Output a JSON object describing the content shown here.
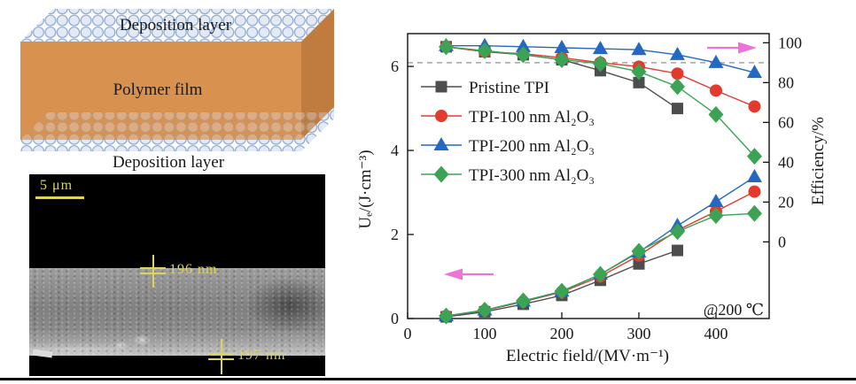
{
  "figure": {
    "schematic": {
      "top_label": "Deposition layer",
      "film_label": "Polymer film",
      "bottom_label": "Deposition layer",
      "film_color": "#d8914f",
      "film_side_color": "#c07c3e",
      "sphere_fill": "#e3eaf6",
      "sphere_edge": "#8aa5cd"
    },
    "sem": {
      "scale_bar_label": "5 μm",
      "measurement_top": "196 nm",
      "measurement_bottom": "197 nm",
      "annotation_color": "#dcd45f"
    },
    "chart_data": {
      "type": "line",
      "xlabel": "Electric field/(MV·m⁻¹)",
      "ylabel_left": "Uₑ/(J·cm⁻³)",
      "ylabel_right": "Efficiency/%",
      "annotation": "@200 ℃",
      "x_ticks": [
        0,
        100,
        200,
        300,
        400
      ],
      "left_ticks": [
        0,
        2,
        4,
        6
      ],
      "right_ticks": [
        0,
        20,
        40,
        60,
        80,
        100
      ],
      "xlim": [
        0,
        469
      ],
      "ylim_left": [
        0,
        6.78
      ],
      "ylim_right": [
        -38.5,
        104.6
      ],
      "dashed_line_efficiency": 90,
      "dashed_color": "#909090",
      "arrow_color": "#ee72d8",
      "legend_position": "upper-left-inside",
      "grid": false,
      "series": [
        {
          "name": "Pristine TPI",
          "color": "#4d4d4d",
          "marker": "square",
          "x": [
            50,
            100,
            150,
            200,
            250,
            300,
            350
          ],
          "energy": [
            0.04,
            0.16,
            0.34,
            0.55,
            0.91,
            1.3,
            1.62
          ],
          "efficiency": [
            98,
            95.5,
            94,
            91.5,
            86,
            80,
            67
          ]
        },
        {
          "name": "TPI-100 nm Al₂O₃",
          "color": "#e23b2e",
          "marker": "circle",
          "x": [
            50,
            100,
            150,
            200,
            250,
            300,
            350,
            400,
            450
          ],
          "energy": [
            0.06,
            0.19,
            0.4,
            0.63,
            1.0,
            1.5,
            2.1,
            2.55,
            3.02
          ],
          "efficiency": [
            98,
            95.5,
            94.5,
            92.5,
            90,
            88,
            84.5,
            76,
            68
          ]
        },
        {
          "name": "TPI-200 nm Al₂O₃",
          "color": "#2468c2",
          "marker": "triangle",
          "x": [
            50,
            100,
            150,
            200,
            250,
            300,
            350,
            400,
            450
          ],
          "energy": [
            0.06,
            0.2,
            0.41,
            0.65,
            1.05,
            1.58,
            2.21,
            2.78,
            3.37
          ],
          "efficiency": [
            98.5,
            98.5,
            98,
            97.5,
            97,
            96.5,
            94,
            90,
            85
          ]
        },
        {
          "name": "TPI-300 nm Al₂O₃",
          "color": "#3ba353",
          "marker": "diamond",
          "x": [
            50,
            100,
            150,
            200,
            250,
            300,
            350,
            400,
            450
          ],
          "energy": [
            0.06,
            0.2,
            0.42,
            0.65,
            1.05,
            1.6,
            2.07,
            2.45,
            2.5
          ],
          "efficiency": [
            98,
            96,
            94,
            91.5,
            89.5,
            85.5,
            78,
            64,
            43
          ]
        }
      ]
    }
  }
}
